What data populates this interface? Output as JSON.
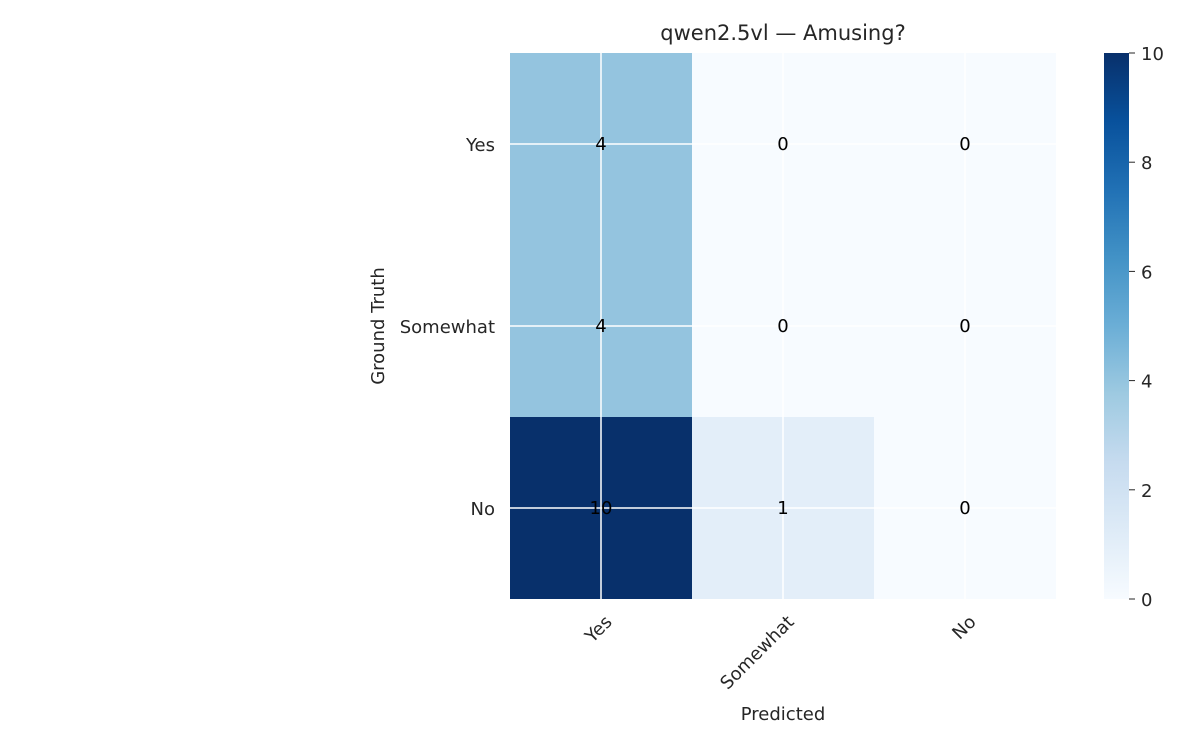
{
  "chart_data": {
    "type": "heatmap",
    "title": "qwen2.5vl — Amusing?",
    "xlabel": "Predicted",
    "ylabel": "Ground Truth",
    "x_categories": [
      "Yes",
      "Somewhat",
      "No"
    ],
    "y_categories": [
      "Yes",
      "Somewhat",
      "No"
    ],
    "values": [
      [
        4,
        0,
        0
      ],
      [
        4,
        0,
        0
      ],
      [
        10,
        1,
        0
      ]
    ],
    "colorbar": {
      "range": [
        0,
        10
      ],
      "ticks": [
        0,
        2,
        4,
        6,
        8,
        10
      ],
      "colormap": "Blues"
    },
    "grid": true
  }
}
